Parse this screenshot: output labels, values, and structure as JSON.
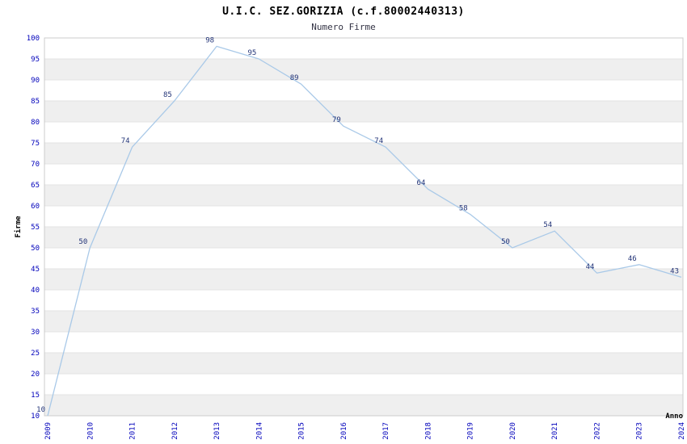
{
  "chart_data": {
    "type": "line",
    "title": "U.I.C. SEZ.GORIZIA (c.f.80002440313)",
    "subtitle": "Numero Firme",
    "xlabel": "Anno",
    "ylabel": "Firme",
    "categories": [
      "2009",
      "2010",
      "2011",
      "2012",
      "2013",
      "2014",
      "2015",
      "2016",
      "2017",
      "2018",
      "2019",
      "2020",
      "2021",
      "2022",
      "2023",
      "2024"
    ],
    "values": [
      10,
      50,
      74,
      85,
      98,
      95,
      89,
      79,
      74,
      64,
      58,
      50,
      54,
      44,
      46,
      43
    ],
    "ylim": [
      10,
      100
    ],
    "ytick_step": 5,
    "grid": true,
    "legend": "none",
    "colors": {
      "line": "#a9c9e8",
      "band_light": "#ffffff",
      "band_dark": "#efefef",
      "gridline": "#e3e3e3",
      "plot_border": "#cccccc",
      "tick_text": "#0000bb",
      "label_text": "#223377"
    }
  }
}
